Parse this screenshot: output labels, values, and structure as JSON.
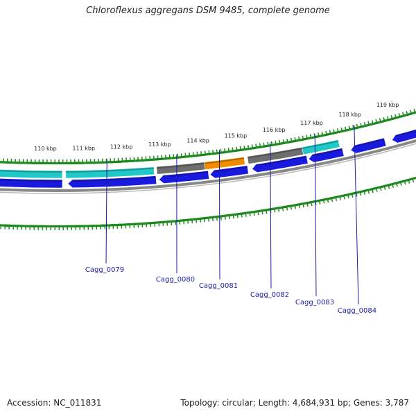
{
  "title": "Chloroflexus aggregans DSM 9485, complete genome",
  "footer": {
    "accession": "Accession: NC_011831",
    "summary": "Topology: circular; Length: 4,684,931 bp; Genes: 3,787"
  },
  "colors": {
    "backbone": "#888888",
    "tick": "#1e8a1e",
    "gene_blue": "#1a1adf",
    "gene_cyan": "#22c8c8",
    "gene_gray": "#6e6e6e",
    "gene_orange": "#f08c00",
    "label": "#1a1aaa"
  },
  "kbp_labels": [
    "110 kbp",
    "111 kbp",
    "112 kbp",
    "113 kbp",
    "114 kbp",
    "115 kbp",
    "116 kbp",
    "117 kbp",
    "118 kbp",
    "119 kbp"
  ],
  "gene_labels": [
    "Cagg_0079",
    "Cagg_0080",
    "Cagg_0081",
    "Cagg_0082",
    "Cagg_0083",
    "Cagg_0084"
  ],
  "feature_tracks": {
    "forward_genes": [
      "blue",
      "blue",
      "blue",
      "blue",
      "blue",
      "blue",
      "blue",
      "blue",
      "blue"
    ],
    "reverse_features": [
      "cyan",
      "cyan",
      "gray",
      "orange",
      "gray",
      "cyan"
    ]
  }
}
